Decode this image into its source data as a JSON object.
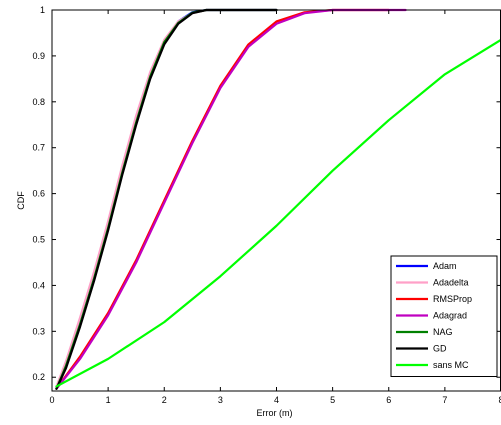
{
  "chart_data": {
    "type": "line",
    "title": "",
    "xlabel": "Error (m)",
    "ylabel": "CDF",
    "xlim": [
      0,
      8
    ],
    "ylim": [
      0.17,
      1.0
    ],
    "xticks": [
      0,
      1,
      2,
      3,
      4,
      5,
      6,
      7,
      8
    ],
    "xtick_labels": [
      "0",
      "1",
      "2",
      "3",
      "4",
      "5",
      "6",
      "7",
      "8"
    ],
    "yticks": [
      0.2,
      0.3,
      0.4,
      0.5,
      0.6,
      0.7,
      0.8,
      0.9,
      1.0
    ],
    "ytick_labels": [
      "0.2",
      "0.3",
      "0.4",
      "0.5",
      "0.6",
      "0.7",
      "0.8",
      "0.9",
      "1"
    ],
    "grid": false,
    "legend_position": "bottom-right",
    "series": [
      {
        "name": "Adam",
        "color": "#0000ff",
        "x": [
          0.08,
          0.25,
          0.5,
          0.75,
          1.0,
          1.25,
          1.5,
          1.75,
          2.0,
          2.25,
          2.5,
          2.75,
          3.0,
          3.5,
          4.0
        ],
        "y": [
          0.175,
          0.225,
          0.32,
          0.42,
          0.53,
          0.65,
          0.76,
          0.86,
          0.93,
          0.975,
          0.995,
          1.0,
          1.0,
          1.0,
          1.0
        ]
      },
      {
        "name": "Adadelta",
        "color": "#ffa0c8",
        "x": [
          0.08,
          0.25,
          0.5,
          0.75,
          1.0,
          1.25,
          1.5,
          1.75,
          2.0,
          2.25,
          2.5,
          2.75,
          3.0,
          3.5,
          4.0
        ],
        "y": [
          0.18,
          0.235,
          0.33,
          0.43,
          0.54,
          0.66,
          0.77,
          0.865,
          0.935,
          0.975,
          0.993,
          1.0,
          1.0,
          1.0,
          1.0
        ]
      },
      {
        "name": "RMSProp",
        "color": "#ff0000",
        "x": [
          0.08,
          0.5,
          1.0,
          1.5,
          2.0,
          2.5,
          3.0,
          3.5,
          4.0,
          4.5,
          5.0,
          5.5,
          6.0
        ],
        "y": [
          0.175,
          0.245,
          0.34,
          0.455,
          0.585,
          0.715,
          0.835,
          0.925,
          0.975,
          0.995,
          1.0,
          1.0,
          1.0
        ]
      },
      {
        "name": "Adagrad",
        "color": "#c000c0",
        "x": [
          0.08,
          0.5,
          1.0,
          1.5,
          2.0,
          2.5,
          3.0,
          3.5,
          4.0,
          4.5,
          5.0,
          5.5,
          6.0,
          6.3
        ],
        "y": [
          0.175,
          0.24,
          0.335,
          0.45,
          0.58,
          0.71,
          0.83,
          0.92,
          0.97,
          0.993,
          1.0,
          1.0,
          1.0,
          1.0
        ]
      },
      {
        "name": "NAG",
        "color": "#008000",
        "x": [
          0.08,
          0.25,
          0.5,
          0.75,
          1.0,
          1.25,
          1.5,
          1.75,
          2.0,
          2.25,
          2.5,
          2.75,
          3.0,
          3.5,
          4.0
        ],
        "y": [
          0.175,
          0.225,
          0.315,
          0.415,
          0.525,
          0.645,
          0.755,
          0.855,
          0.93,
          0.972,
          0.994,
          1.0,
          1.0,
          1.0,
          1.0
        ]
      },
      {
        "name": "GD",
        "color": "#000000",
        "x": [
          0.08,
          0.25,
          0.5,
          0.75,
          1.0,
          1.25,
          1.5,
          1.75,
          2.0,
          2.25,
          2.5,
          2.75,
          3.0,
          3.5,
          4.0
        ],
        "y": [
          0.175,
          0.22,
          0.31,
          0.41,
          0.52,
          0.64,
          0.75,
          0.85,
          0.925,
          0.97,
          0.993,
          1.0,
          1.0,
          1.0,
          1.0
        ]
      },
      {
        "name": "sans MC",
        "color": "#00ff00",
        "x": [
          0.08,
          1.0,
          2.0,
          3.0,
          4.0,
          5.0,
          6.0,
          7.0,
          8.0
        ],
        "y": [
          0.18,
          0.24,
          0.32,
          0.42,
          0.53,
          0.65,
          0.76,
          0.86,
          0.935
        ]
      }
    ]
  }
}
